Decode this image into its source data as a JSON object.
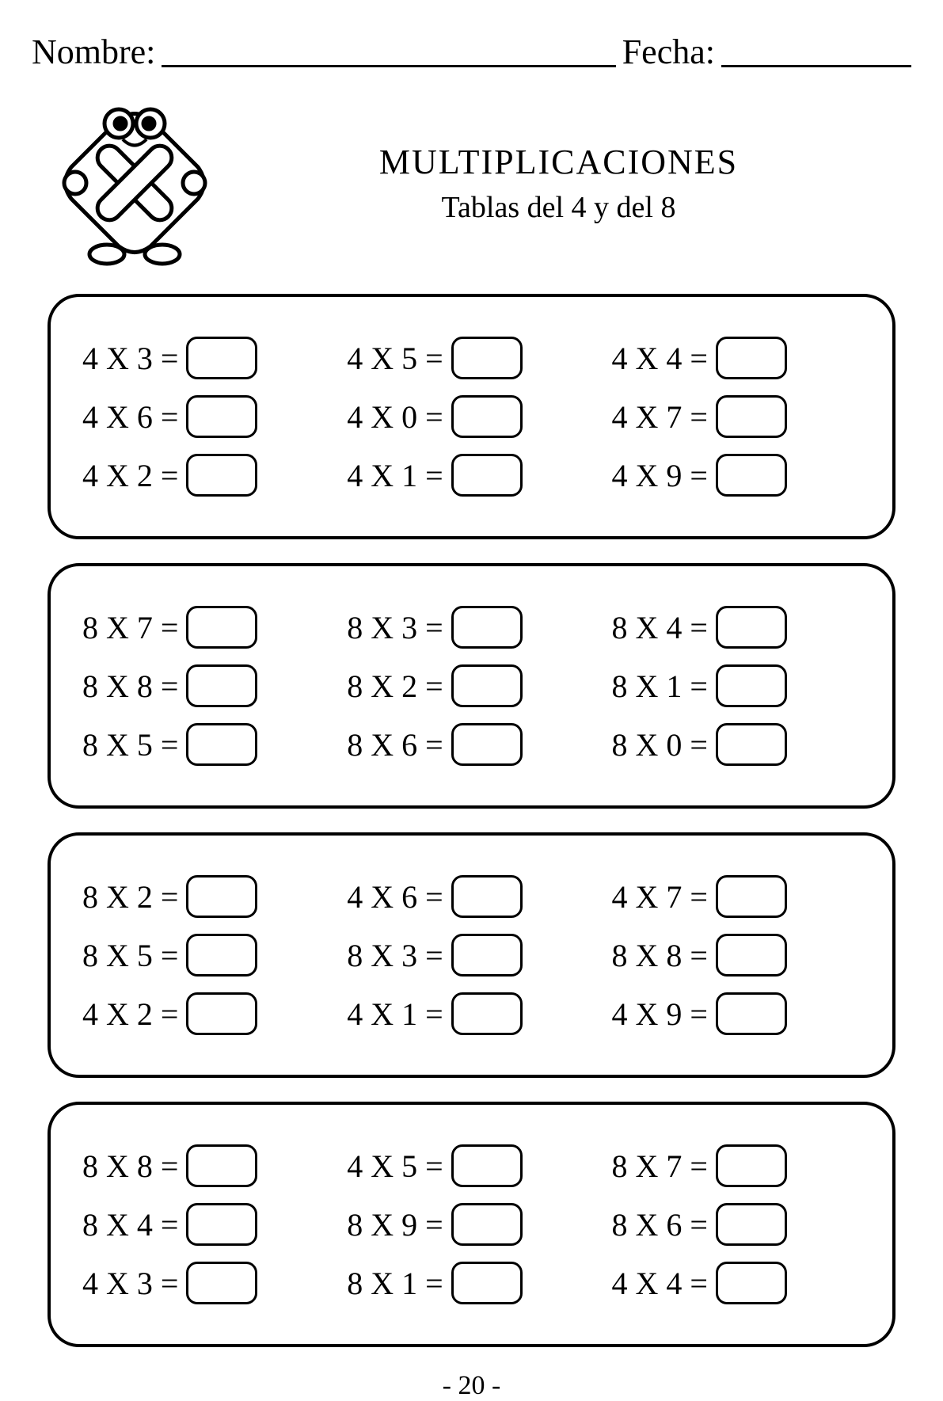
{
  "header": {
    "name_label": "Nombre:",
    "date_label": "Fecha:"
  },
  "title": {
    "main": "MULTIPLICACIONES",
    "sub": "Tablas del 4 y del 8"
  },
  "boxes": [
    {
      "rows": [
        [
          "4 X 3 =",
          "4 X 5 =",
          "4 X 4 ="
        ],
        [
          "4 X 6 =",
          "4 X 0 =",
          "4 X 7 ="
        ],
        [
          "4 X 2 =",
          "4 X 1 =",
          "4 X 9 ="
        ]
      ]
    },
    {
      "rows": [
        [
          "8 X 7 =",
          "8 X 3 =",
          "8 X 4 ="
        ],
        [
          "8 X 8 =",
          "8 X 2 =",
          "8 X 1 ="
        ],
        [
          "8 X 5 =",
          "8 X 6 =",
          "8 X 0 ="
        ]
      ]
    },
    {
      "rows": [
        [
          "8 X 2 =",
          "4 X 6 =",
          "4 X 7 ="
        ],
        [
          "8 X 5 =",
          "8 X 3 =",
          "8 X 8 ="
        ],
        [
          "4 X 2 =",
          "4 X 1 =",
          "4 X 9 ="
        ]
      ]
    },
    {
      "rows": [
        [
          "8 X 8 =",
          "4 X 5 =",
          "8 X 7 ="
        ],
        [
          "8 X 4 =",
          "8 X 9 =",
          "8 X 6 ="
        ],
        [
          "4 X 3 =",
          "8 X 1 =",
          "4 X 4 ="
        ]
      ]
    }
  ],
  "page_number": "- 20 -",
  "style": {
    "background_color": "#ffffff",
    "text_color": "#000000",
    "border_color": "#000000",
    "border_width": 4,
    "border_radius": 40,
    "answer_box_width": 90,
    "answer_box_height": 54,
    "answer_box_radius": 14,
    "answer_box_border": 3,
    "font_family": "Comic Sans MS",
    "header_font_family": "Brush Script MT",
    "title_fontsize": 44,
    "subtitle_fontsize": 38,
    "problem_fontsize": 40,
    "header_fontsize": 44,
    "page_number_fontsize": 34
  }
}
